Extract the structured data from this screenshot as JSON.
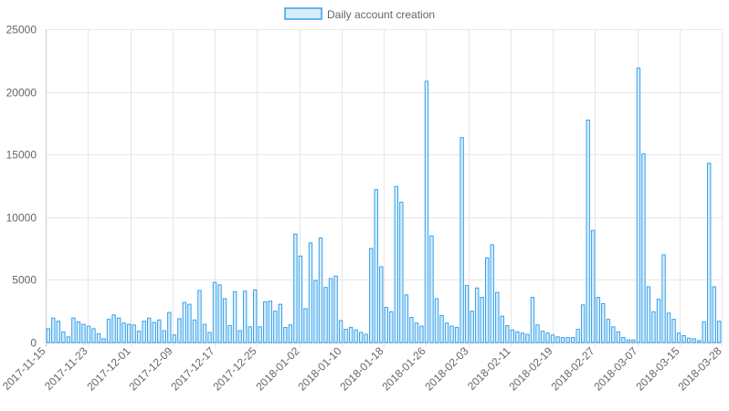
{
  "chart_data": {
    "type": "bar",
    "series": [
      {
        "name": "Daily account creation",
        "color": "#36a2eb",
        "fill": "#d7ecfb",
        "values": [
          1100,
          1950,
          1700,
          850,
          450,
          1950,
          1650,
          1450,
          1300,
          1100,
          700,
          300,
          1850,
          2200,
          1950,
          1550,
          1450,
          1400,
          900,
          1700,
          1950,
          1600,
          1800,
          950,
          2400,
          600,
          1900,
          3200,
          3050,
          1800,
          4150,
          1450,
          800,
          4800,
          4600,
          3500,
          1350,
          4050,
          950,
          4100,
          1250,
          4200,
          1250,
          3250,
          3300,
          2500,
          3050,
          1200,
          1400,
          8650,
          6900,
          2700,
          7950,
          4950,
          8350,
          4400,
          5100,
          5300,
          1750,
          1050,
          1200,
          1000,
          800,
          650,
          7500,
          12200,
          6050,
          2800,
          2450,
          12450,
          11200,
          3800,
          2000,
          1550,
          1300,
          20850,
          8500,
          3500,
          2150,
          1550,
          1300,
          1200,
          16350,
          4550,
          2500,
          4350,
          3600,
          6750,
          7800,
          4000,
          2100,
          1350,
          1000,
          850,
          750,
          650,
          3600,
          1400,
          900,
          750,
          600,
          450,
          400,
          400,
          400,
          1050,
          3000,
          17750,
          8950,
          3600,
          3100,
          1850,
          1250,
          850,
          400,
          200,
          200,
          21900,
          15050,
          4450,
          2450,
          3450,
          7000,
          2350,
          1850,
          750,
          550,
          350,
          300,
          150,
          1650,
          14300,
          4450,
          1700
        ]
      }
    ],
    "x_tick_labels": [
      "2017-11-15",
      "2017-11-23",
      "2017-12-01",
      "2017-12-09",
      "2017-12-17",
      "2017-12-25",
      "2018-01-02",
      "2018-01-10",
      "2018-01-18",
      "2018-01-26",
      "2018-02-03",
      "2018-02-11",
      "2018-02-19",
      "2018-02-27",
      "2018-03-07",
      "2018-03-15",
      "2018-03-28"
    ],
    "y_ticks": [
      "0",
      "5000",
      "10000",
      "15000",
      "20000",
      "25000"
    ],
    "ylim": [
      0,
      25000
    ],
    "legend": {
      "label": "Daily account creation",
      "placement": "top"
    },
    "grid": true
  }
}
